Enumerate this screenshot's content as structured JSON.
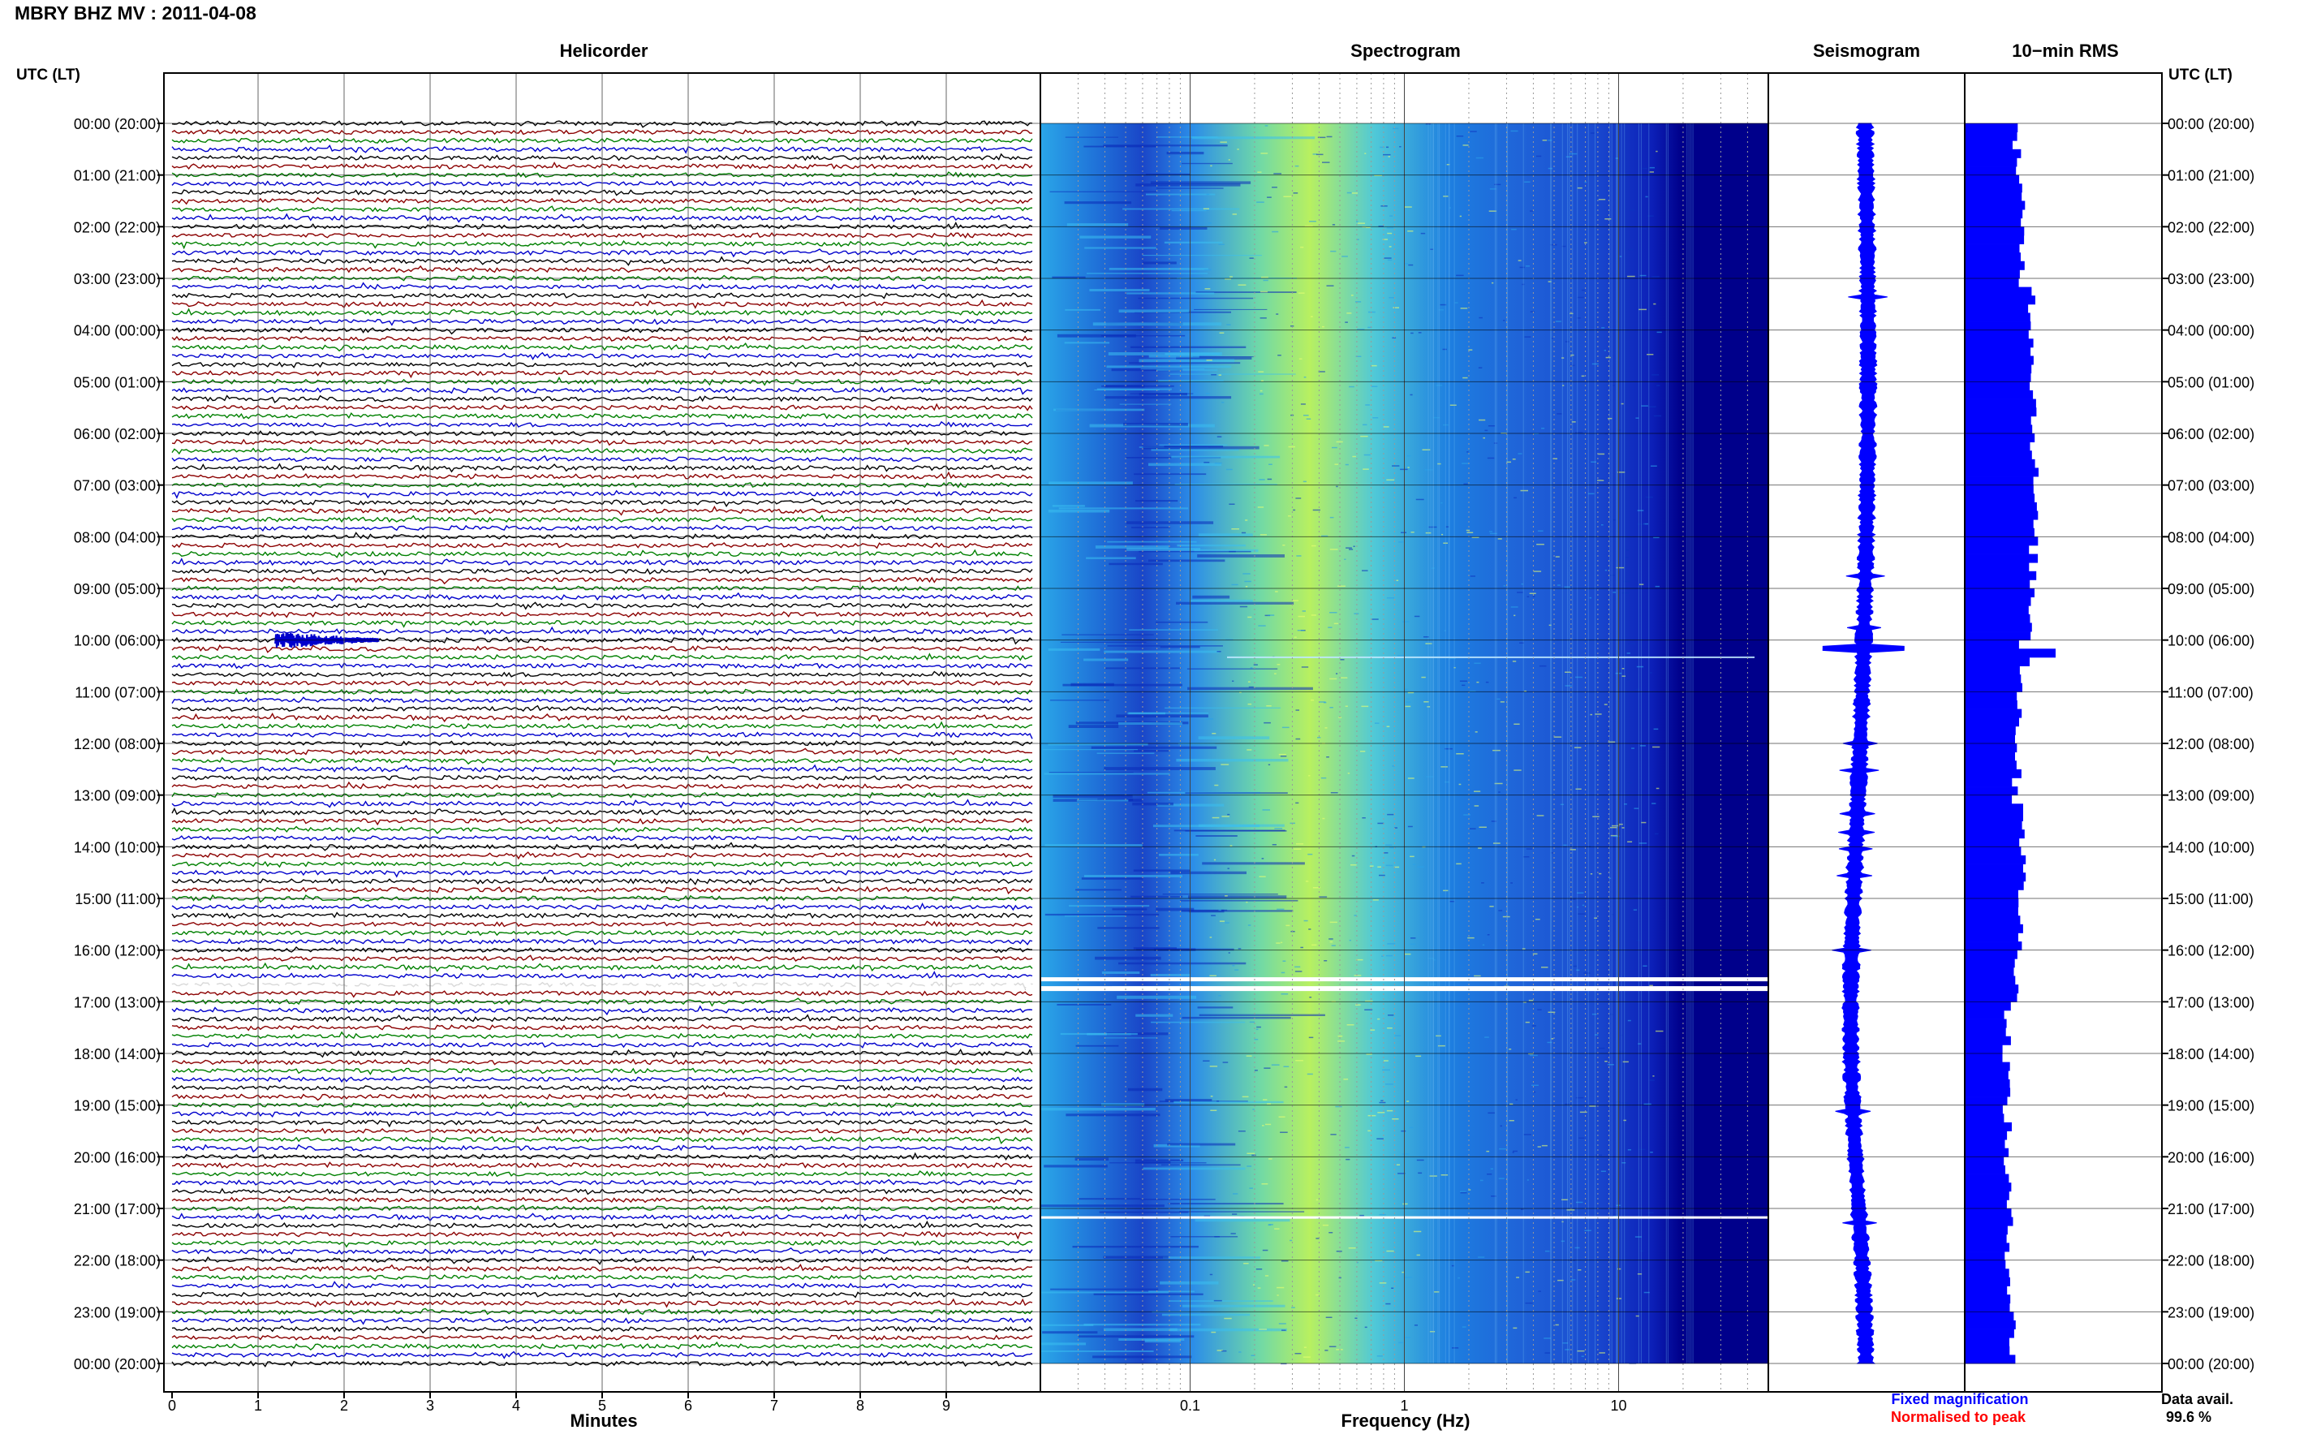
{
  "header": {
    "title": "MBRY BHZ MV : 2011-04-08"
  },
  "labels": {
    "utc_left": "UTC (LT)",
    "utc_right": "UTC (LT)",
    "fixed_mag": "Fixed magnification",
    "normalised": "Normalised to peak",
    "data_avail_label": "Data avail.",
    "data_avail_value": "99.6 %"
  },
  "colors": {
    "trace_cycle": [
      "#000000",
      "#8b0000",
      "#008000",
      "#0000cc"
    ],
    "seismo_blue": "#0000ff",
    "fixed_mag_blue": "#0000ff",
    "normalised_red": "#ff0000",
    "spectro_low": "#00008b",
    "spectro_mid": "#1e90ff",
    "spectro_high": "#b8f060"
  },
  "chart_data": [
    {
      "type": "heatmap",
      "title": "Helicorder",
      "xlabel": "Minutes",
      "x_ticks": [
        "0",
        "1",
        "2",
        "3",
        "4",
        "5",
        "6",
        "7",
        "8",
        "9"
      ],
      "xlim": [
        0,
        10
      ],
      "time_labels": [
        "00:00 (20:00)",
        "01:00 (21:00)",
        "02:00 (22:00)",
        "03:00 (23:00)",
        "04:00 (00:00)",
        "05:00 (01:00)",
        "06:00 (02:00)",
        "07:00 (03:00)",
        "08:00 (04:00)",
        "09:00 (05:00)",
        "10:00 (06:00)",
        "11:00 (07:00)",
        "12:00 (08:00)",
        "13:00 (09:00)",
        "14:00 (10:00)",
        "15:00 (11:00)",
        "16:00 (12:00)",
        "17:00 (13:00)",
        "18:00 (14:00)",
        "19:00 (15:00)",
        "20:00 (16:00)",
        "21:00 (17:00)",
        "22:00 (18:00)",
        "23:00 (19:00)",
        "00:00 (20:00)"
      ],
      "traces_per_hour": 6,
      "events": [
        {
          "time_utc": "10:00",
          "start_min": 1.2,
          "end_min": 2.4,
          "note": "largest event of the day"
        },
        {
          "time_utc": "16:40",
          "start_min": 0.0,
          "end_min": 10.0,
          "note": "data gap"
        }
      ]
    },
    {
      "type": "heatmap",
      "title": "Spectrogram",
      "xlabel": "Frequency (Hz)",
      "x_scale": "log",
      "xlim": [
        0.02,
        50
      ],
      "x_ticks": [
        "0.1",
        "1",
        "10"
      ],
      "peak_band_hz": [
        0.15,
        0.5
      ],
      "gaps_utc": [
        "16:40",
        "21:10"
      ]
    },
    {
      "type": "area",
      "title": "Seismogram",
      "peak_utc": "10:10"
    },
    {
      "type": "bar",
      "title": "10−min RMS",
      "peak_utc": "10:10",
      "peak_relative": 1.0
    }
  ]
}
